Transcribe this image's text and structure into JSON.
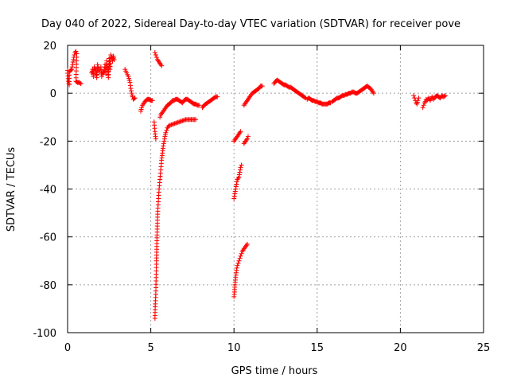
{
  "chart_data": {
    "type": "scatter",
    "title": "Day 040 of 2022, Sidereal Day-to-day VTEC variation (SDTVAR) for receiver pove",
    "xlabel": "GPS time / hours",
    "ylabel": "SDTVAR / TECUs",
    "xlim": [
      0,
      25
    ],
    "ylim": [
      -100,
      20
    ],
    "xticks": [
      0,
      5,
      10,
      15,
      20,
      25
    ],
    "yticks": [
      -100,
      -80,
      -60,
      -40,
      -20,
      0,
      20
    ],
    "grid": true,
    "marker": "+",
    "color": "#ff0000",
    "series": [
      {
        "name": "SDTVAR",
        "segments": [
          [
            [
              0.0,
              9.5
            ],
            [
              0.05,
              5
            ],
            [
              0.1,
              3.5
            ],
            [
              0.1,
              9
            ],
            [
              0.25,
              10
            ],
            [
              0.3,
              12
            ],
            [
              0.35,
              14
            ],
            [
              0.4,
              16
            ],
            [
              0.45,
              17
            ],
            [
              0.5,
              17.5
            ],
            [
              0.55,
              16.5
            ],
            [
              0.5,
              5
            ],
            [
              0.6,
              4.5
            ],
            [
              0.7,
              4.5
            ],
            [
              0.8,
              4
            ]
          ],
          [
            [
              1.45,
              8.5
            ],
            [
              1.5,
              10
            ],
            [
              1.55,
              7
            ],
            [
              1.6,
              11
            ],
            [
              1.7,
              9.5
            ],
            [
              1.75,
              6.5
            ],
            [
              1.8,
              12
            ],
            [
              1.9,
              9
            ],
            [
              2.0,
              11
            ],
            [
              2.05,
              7
            ],
            [
              2.1,
              8.5
            ],
            [
              2.2,
              9
            ],
            [
              2.25,
              12
            ],
            [
              2.3,
              8
            ],
            [
              2.35,
              13.5
            ],
            [
              2.4,
              11
            ],
            [
              2.45,
              6.5
            ],
            [
              2.5,
              14.5
            ],
            [
              2.55,
              10
            ],
            [
              2.6,
              16
            ],
            [
              2.65,
              15
            ],
            [
              2.7,
              13.5
            ],
            [
              2.75,
              15.5
            ],
            [
              2.8,
              14
            ]
          ],
          [
            [
              3.45,
              10
            ],
            [
              3.55,
              8.5
            ],
            [
              3.65,
              7
            ],
            [
              3.75,
              4.5
            ],
            [
              3.8,
              2
            ],
            [
              3.85,
              0
            ],
            [
              3.9,
              -1.5
            ],
            [
              3.95,
              -2.5
            ],
            [
              4.05,
              -2
            ]
          ],
          [
            [
              4.4,
              -7.5
            ],
            [
              4.45,
              -6
            ],
            [
              4.5,
              -5
            ],
            [
              4.6,
              -4
            ],
            [
              4.7,
              -3
            ],
            [
              4.8,
              -2.5
            ],
            [
              4.9,
              -2.5
            ],
            [
              5.0,
              -3
            ],
            [
              5.1,
              -3
            ]
          ],
          [
            [
              5.2,
              -12
            ],
            [
              5.25,
              -16
            ],
            [
              5.3,
              -19
            ]
          ],
          [
            [
              5.25,
              17
            ],
            [
              5.3,
              16
            ],
            [
              5.35,
              15
            ],
            [
              5.4,
              14
            ],
            [
              5.5,
              13
            ],
            [
              5.6,
              12
            ],
            [
              5.65,
              11.5
            ]
          ],
          [
            [
              5.25,
              -94
            ],
            [
              5.27,
              -88
            ],
            [
              5.3,
              -84
            ],
            [
              5.32,
              -77
            ],
            [
              5.34,
              -70
            ],
            [
              5.36,
              -64
            ],
            [
              5.38,
              -58
            ],
            [
              5.4,
              -53
            ],
            [
              5.43,
              -48
            ],
            [
              5.46,
              -44
            ],
            [
              5.5,
              -40
            ],
            [
              5.55,
              -36
            ],
            [
              5.6,
              -32
            ],
            [
              5.65,
              -28
            ],
            [
              5.7,
              -25
            ],
            [
              5.75,
              -22
            ],
            [
              5.8,
              -20
            ],
            [
              5.85,
              -18
            ],
            [
              5.9,
              -16.5
            ],
            [
              6.0,
              -14.5
            ],
            [
              6.1,
              -13.5
            ],
            [
              6.3,
              -13
            ],
            [
              6.5,
              -12.5
            ],
            [
              6.7,
              -12
            ],
            [
              6.9,
              -11.5
            ],
            [
              7.1,
              -11
            ],
            [
              7.3,
              -11
            ],
            [
              7.5,
              -11
            ],
            [
              7.7,
              -11
            ]
          ],
          [
            [
              5.55,
              -10
            ],
            [
              5.6,
              -9
            ],
            [
              5.7,
              -8
            ],
            [
              5.8,
              -7
            ],
            [
              5.9,
              -6
            ],
            [
              6.0,
              -5
            ],
            [
              6.1,
              -4.5
            ],
            [
              6.2,
              -4
            ],
            [
              6.3,
              -3
            ],
            [
              6.4,
              -3
            ],
            [
              6.5,
              -2.5
            ],
            [
              6.6,
              -2.5
            ],
            [
              6.7,
              -3
            ],
            [
              6.8,
              -3.5
            ],
            [
              6.9,
              -4
            ],
            [
              7.0,
              -3
            ],
            [
              7.1,
              -2.5
            ],
            [
              7.2,
              -2.5
            ],
            [
              7.3,
              -3
            ],
            [
              7.4,
              -3.5
            ],
            [
              7.5,
              -4
            ],
            [
              7.6,
              -4.5
            ],
            [
              7.7,
              -4.5
            ],
            [
              7.8,
              -5
            ],
            [
              7.9,
              -5
            ]
          ],
          [
            [
              8.1,
              -6
            ],
            [
              8.2,
              -5
            ],
            [
              8.3,
              -4.5
            ],
            [
              8.4,
              -4
            ],
            [
              8.5,
              -3.5
            ],
            [
              8.6,
              -3
            ],
            [
              8.7,
              -2.5
            ],
            [
              8.8,
              -2
            ],
            [
              8.9,
              -1.5
            ],
            [
              9.0,
              -1.5
            ]
          ],
          [
            [
              10.0,
              -20
            ],
            [
              10.1,
              -19
            ],
            [
              10.2,
              -18
            ],
            [
              10.3,
              -17
            ],
            [
              10.4,
              -16
            ]
          ],
          [
            [
              10.6,
              -21
            ],
            [
              10.7,
              -20
            ],
            [
              10.8,
              -19
            ],
            [
              10.85,
              -18
            ]
          ],
          [
            [
              10.0,
              -44
            ],
            [
              10.05,
              -42
            ],
            [
              10.1,
              -40
            ],
            [
              10.15,
              -38
            ],
            [
              10.2,
              -36
            ],
            [
              10.3,
              -35
            ],
            [
              10.35,
              -33
            ],
            [
              10.4,
              -31
            ],
            [
              10.45,
              -30
            ]
          ],
          [
            [
              10.0,
              -85
            ],
            [
              10.03,
              -83
            ],
            [
              10.06,
              -80
            ],
            [
              10.1,
              -77
            ],
            [
              10.15,
              -74
            ],
            [
              10.2,
              -72
            ],
            [
              10.25,
              -71
            ],
            [
              10.3,
              -70
            ],
            [
              10.35,
              -69
            ],
            [
              10.4,
              -68
            ],
            [
              10.45,
              -67
            ],
            [
              10.5,
              -66
            ],
            [
              10.6,
              -65
            ],
            [
              10.7,
              -64
            ],
            [
              10.8,
              -63
            ]
          ],
          [
            [
              10.6,
              -5
            ],
            [
              10.7,
              -4
            ],
            [
              10.8,
              -3
            ],
            [
              10.9,
              -2
            ],
            [
              11.0,
              -1
            ],
            [
              11.1,
              0
            ],
            [
              11.2,
              0.5
            ],
            [
              11.3,
              1
            ],
            [
              11.4,
              1.5
            ],
            [
              11.5,
              2
            ],
            [
              11.6,
              3
            ],
            [
              11.7,
              3
            ]
          ],
          [
            [
              12.4,
              4
            ],
            [
              12.5,
              5
            ],
            [
              12.6,
              5.5
            ],
            [
              12.7,
              5
            ],
            [
              12.8,
              4.5
            ],
            [
              12.9,
              4
            ],
            [
              13.0,
              3.5
            ],
            [
              13.1,
              3.5
            ],
            [
              13.2,
              3
            ],
            [
              13.3,
              2.5
            ],
            [
              13.4,
              2.5
            ],
            [
              13.5,
              2
            ],
            [
              13.6,
              1.5
            ],
            [
              13.7,
              1
            ],
            [
              13.8,
              0.5
            ],
            [
              13.9,
              0
            ],
            [
              14.0,
              -0.5
            ],
            [
              14.1,
              -1
            ],
            [
              14.2,
              -1.5
            ],
            [
              14.3,
              -2
            ]
          ],
          [
            [
              14.4,
              -2.5
            ],
            [
              14.5,
              -2
            ],
            [
              14.6,
              -2.5
            ],
            [
              14.7,
              -3
            ],
            [
              14.8,
              -3
            ],
            [
              14.9,
              -3.5
            ],
            [
              15.0,
              -3.5
            ],
            [
              15.1,
              -4
            ],
            [
              15.2,
              -4
            ],
            [
              15.3,
              -4.5
            ],
            [
              15.4,
              -4.5
            ],
            [
              15.5,
              -4.5
            ],
            [
              15.6,
              -4.5
            ],
            [
              15.7,
              -4
            ],
            [
              15.8,
              -4
            ]
          ],
          [
            [
              15.9,
              -3.5
            ],
            [
              16.0,
              -3
            ],
            [
              16.1,
              -2.5
            ],
            [
              16.2,
              -2
            ],
            [
              16.3,
              -2
            ],
            [
              16.4,
              -1.5
            ],
            [
              16.5,
              -1
            ],
            [
              16.6,
              -1
            ],
            [
              16.7,
              -0.5
            ],
            [
              16.8,
              -0.5
            ],
            [
              16.9,
              0
            ],
            [
              17.0,
              0
            ],
            [
              17.1,
              0.5
            ],
            [
              17.2,
              0.5
            ],
            [
              17.3,
              0
            ],
            [
              17.4,
              0
            ],
            [
              17.5,
              0.5
            ],
            [
              17.6,
              1
            ],
            [
              17.7,
              1.5
            ],
            [
              17.8,
              2
            ],
            [
              17.9,
              2.5
            ],
            [
              18.0,
              3
            ],
            [
              18.1,
              2.5
            ],
            [
              18.2,
              2
            ],
            [
              18.3,
              1
            ],
            [
              18.4,
              0
            ]
          ],
          [
            [
              20.8,
              -1
            ],
            [
              20.85,
              -2
            ],
            [
              20.9,
              -3
            ],
            [
              20.95,
              -4
            ],
            [
              21.0,
              -4.5
            ],
            [
              21.05,
              -3
            ],
            [
              21.1,
              -2
            ]
          ],
          [
            [
              21.35,
              -6
            ],
            [
              21.4,
              -5
            ],
            [
              21.45,
              -4
            ],
            [
              21.5,
              -3.5
            ],
            [
              21.55,
              -2.5
            ],
            [
              21.6,
              -3
            ],
            [
              21.7,
              -2
            ],
            [
              21.8,
              -3
            ],
            [
              21.9,
              -1.5
            ],
            [
              22.0,
              -2.5
            ],
            [
              22.1,
              -1.5
            ],
            [
              22.2,
              -1
            ],
            [
              22.3,
              -1.5
            ],
            [
              22.4,
              -2
            ],
            [
              22.5,
              -1
            ],
            [
              22.6,
              -1.5
            ],
            [
              22.7,
              -1
            ]
          ]
        ]
      }
    ]
  }
}
